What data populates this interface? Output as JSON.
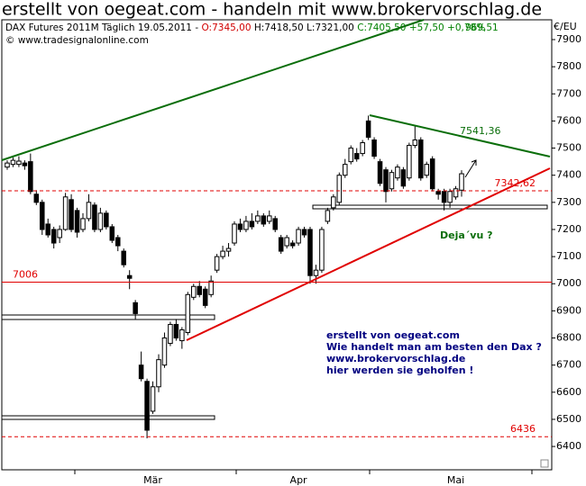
{
  "chart_data": {
    "type": "candlestick",
    "title": "erstellt von oegeat.com - handeln mit www.brokervorschlag.de",
    "info": [
      "DAX Futures 2011M Täglich 19.05.2011 -",
      "O:7345,00",
      "H:7418,50 L:7321,00",
      "C:7405,50 +57,50 +0,78%"
    ],
    "copyright": "© www.tradesignalonline.com",
    "y_unit": "€/EU",
    "corner_value": "969,51",
    "trend_label": {
      "value": 7541.36,
      "label": "7541,36"
    },
    "annotations": [
      "Deja´vu ?",
      "erstellt von oegeat.com",
      "Wie handelt man am besten den Dax ?",
      "www.brokervorschlag.de",
      "hier werden sie geholfen !"
    ],
    "up_color": "#ffffff",
    "down_color": "#000000",
    "categories": [
      null,
      null,
      null,
      null,
      null,
      null,
      null,
      null,
      null,
      null,
      null,
      null,
      null,
      null,
      null,
      null,
      null,
      null,
      null,
      null,
      null,
      null,
      null,
      null,
      null,
      "Mär",
      null,
      null,
      null,
      null,
      null,
      null,
      null,
      null,
      null,
      null,
      null,
      null,
      null,
      null,
      null,
      null,
      null,
      null,
      null,
      null,
      null,
      null,
      null,
      null,
      "Apr",
      null,
      null,
      null,
      null,
      null,
      null,
      null,
      null,
      null,
      null,
      null,
      null,
      null,
      null,
      null,
      null,
      null,
      null,
      null,
      null,
      null,
      null,
      null,
      null,
      null,
      null,
      "Mai",
      null
    ],
    "open": [
      7430,
      7440,
      7440,
      7445,
      7450,
      7330,
      7300,
      7220,
      7200,
      7170,
      7200,
      7310,
      7270,
      7200,
      7240,
      7290,
      7200,
      7260,
      7210,
      7170,
      7120,
      7030,
      6930,
      6700,
      6640,
      6530,
      6620,
      6700,
      6780,
      6850,
      6790,
      6820,
      6950,
      6990,
      6980,
      6960,
      7050,
      7100,
      7120,
      7150,
      7220,
      7200,
      7230,
      7230,
      7250,
      7230,
      7240,
      7170,
      7140,
      7150,
      7150,
      7200,
      7200,
      7030,
      7050,
      7230,
      7280,
      7300,
      7400,
      7450,
      7480,
      7480,
      7600,
      7530,
      7450,
      7420,
      7350,
      7390,
      7420,
      7390,
      7510,
      7530,
      7400,
      7460,
      7340,
      7340,
      7300,
      7320,
      7345
    ],
    "high": [
      7455,
      7465,
      7470,
      7455,
      7480,
      7345,
      7310,
      7240,
      7210,
      7215,
      7335,
      7330,
      7280,
      7260,
      7330,
      7300,
      7280,
      7270,
      7220,
      7180,
      7130,
      7050,
      6940,
      6750,
      6650,
      6640,
      6740,
      6820,
      6860,
      6870,
      6840,
      6970,
      7000,
      7010,
      6990,
      7030,
      7110,
      7140,
      7150,
      7230,
      7240,
      7250,
      7260,
      7270,
      7260,
      7270,
      7250,
      7180,
      7180,
      7160,
      7210,
      7210,
      7210,
      7070,
      7210,
      7280,
      7330,
      7410,
      7460,
      7510,
      7500,
      7530,
      7620,
      7540,
      7460,
      7430,
      7420,
      7440,
      7430,
      7520,
      7580,
      7540,
      7450,
      7470,
      7350,
      7350,
      7350,
      7360,
      7418.5
    ],
    "low": [
      7420,
      7430,
      7430,
      7420,
      7330,
      7290,
      7180,
      7170,
      7130,
      7150,
      7195,
      7190,
      7170,
      7190,
      7230,
      7190,
      7190,
      7200,
      7150,
      7120,
      7060,
      6980,
      6870,
      6640,
      6430,
      6520,
      6600,
      6690,
      6770,
      6790,
      6760,
      6810,
      6940,
      6950,
      6910,
      6950,
      7040,
      7090,
      7100,
      7140,
      7190,
      7190,
      7200,
      7220,
      7210,
      7220,
      7190,
      7110,
      7130,
      7130,
      7140,
      7170,
      7000,
      7000,
      7040,
      7220,
      7270,
      7290,
      7390,
      7440,
      7450,
      7470,
      7530,
      7460,
      7360,
      7300,
      7340,
      7380,
      7350,
      7380,
      7500,
      7380,
      7390,
      7340,
      7310,
      7270,
      7280,
      7310,
      7321
    ],
    "close": [
      7445,
      7455,
      7452,
      7435,
      7340,
      7300,
      7200,
      7180,
      7150,
      7200,
      7320,
      7200,
      7190,
      7240,
      7300,
      7200,
      7260,
      7210,
      7160,
      7140,
      7070,
      7020,
      6890,
      6650,
      6460,
      6620,
      6720,
      6800,
      6850,
      6800,
      6830,
      6960,
      6990,
      6960,
      6920,
      7010,
      7100,
      7120,
      7130,
      7220,
      7200,
      7230,
      7210,
      7250,
      7220,
      7250,
      7200,
      7120,
      7170,
      7140,
      7200,
      7180,
      7030,
      7050,
      7200,
      7270,
      7320,
      7400,
      7440,
      7500,
      7460,
      7520,
      7540,
      7470,
      7370,
      7340,
      7410,
      7430,
      7360,
      7510,
      7530,
      7390,
      7440,
      7350,
      7330,
      7300,
      7340,
      7350,
      7405.5
    ],
    "hlines": [
      {
        "value": 7342.62,
        "label": "7342,62",
        "color": "#e00000",
        "dashed": true,
        "label_side": "right"
      },
      {
        "value": 7006,
        "label": "7006",
        "color": "#e00000",
        "dashed": false,
        "label_side": "left"
      },
      {
        "value": 6436,
        "label": "6436",
        "color": "#e00000",
        "dashed": true,
        "label_side": "right"
      }
    ],
    "ylim": [
      6314,
      7973
    ],
    "yticks": [
      6400,
      6500,
      6600,
      6700,
      6800,
      6900,
      7000,
      7100,
      7200,
      7300,
      7400,
      7500,
      7600,
      7700,
      7800,
      7900
    ]
  }
}
